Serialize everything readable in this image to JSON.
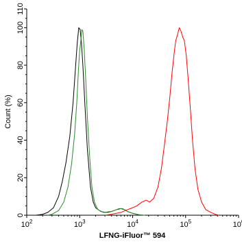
{
  "chart_data": {
    "type": "line",
    "title": "",
    "xlabel": "LFNG-iFluor™ 594",
    "ylabel": "Count (%)",
    "xscale": "log",
    "xlim": [
      100,
      1000000
    ],
    "ylim": [
      0,
      110
    ],
    "grid": false,
    "legend": "none",
    "x_ticks": [
      {
        "value": 100,
        "base": "10",
        "exp": "2"
      },
      {
        "value": 1000,
        "base": "10",
        "exp": "3"
      },
      {
        "value": 10000,
        "base": "10",
        "exp": "4"
      },
      {
        "value": 100000,
        "base": "10",
        "exp": "5"
      },
      {
        "value": 1000000,
        "base": "10",
        "exp": "6"
      }
    ],
    "y_ticks": [
      {
        "value": 0,
        "label": "0"
      },
      {
        "value": 20,
        "label": "20"
      },
      {
        "value": 40,
        "label": "40"
      },
      {
        "value": 60,
        "label": "60"
      },
      {
        "value": 80,
        "label": "80"
      },
      {
        "value": 100,
        "label": "100"
      },
      {
        "value": 110,
        "label": "110"
      }
    ],
    "series": [
      {
        "color": "#000000",
        "points": [
          [
            150,
            0
          ],
          [
            200,
            0.5
          ],
          [
            250,
            1.5
          ],
          [
            320,
            4
          ],
          [
            400,
            10
          ],
          [
            470,
            18
          ],
          [
            550,
            28
          ],
          [
            650,
            42
          ],
          [
            750,
            60
          ],
          [
            830,
            78
          ],
          [
            900,
            92
          ],
          [
            960,
            100
          ],
          [
            1020,
            99
          ],
          [
            1080,
            92
          ],
          [
            1150,
            80
          ],
          [
            1250,
            60
          ],
          [
            1400,
            35
          ],
          [
            1600,
            15
          ],
          [
            1800,
            7
          ],
          [
            2000,
            4
          ],
          [
            2500,
            2
          ],
          [
            3000,
            1.5
          ],
          [
            4000,
            2
          ],
          [
            5000,
            3
          ],
          [
            6000,
            3.5
          ],
          [
            7000,
            3
          ],
          [
            8000,
            2
          ],
          [
            10000,
            1
          ],
          [
            13000,
            0.3
          ],
          [
            16000,
            0
          ]
        ]
      },
      {
        "color": "#2a8a2a",
        "points": [
          [
            250,
            0
          ],
          [
            300,
            0.5
          ],
          [
            400,
            2.5
          ],
          [
            500,
            7
          ],
          [
            600,
            15
          ],
          [
            700,
            27
          ],
          [
            800,
            43
          ],
          [
            880,
            60
          ],
          [
            950,
            78
          ],
          [
            1000,
            88
          ],
          [
            1050,
            93
          ],
          [
            1100,
            99
          ],
          [
            1150,
            98
          ],
          [
            1220,
            88
          ],
          [
            1300,
            72
          ],
          [
            1400,
            52
          ],
          [
            1550,
            30
          ],
          [
            1700,
            15
          ],
          [
            1900,
            7
          ],
          [
            2200,
            3
          ],
          [
            2800,
            1.5
          ],
          [
            3500,
            1.5
          ],
          [
            4500,
            2.5
          ],
          [
            5500,
            3.5
          ],
          [
            6500,
            3.5
          ],
          [
            8000,
            2
          ],
          [
            10000,
            1
          ],
          [
            13000,
            0.3
          ],
          [
            17000,
            0
          ]
        ]
      },
      {
        "color": "#ff0000",
        "points": [
          [
            3000,
            0
          ],
          [
            4000,
            0.5
          ],
          [
            6000,
            1.5
          ],
          [
            8000,
            3
          ],
          [
            10000,
            4
          ],
          [
            12000,
            5
          ],
          [
            15000,
            7
          ],
          [
            18000,
            8
          ],
          [
            21000,
            7
          ],
          [
            25000,
            9
          ],
          [
            30000,
            15
          ],
          [
            35000,
            25
          ],
          [
            40000,
            38
          ],
          [
            45000,
            50
          ],
          [
            50000,
            62
          ],
          [
            55000,
            75
          ],
          [
            60000,
            85
          ],
          [
            65000,
            93
          ],
          [
            70000,
            96
          ],
          [
            76000,
            100
          ],
          [
            82000,
            98
          ],
          [
            88000,
            95
          ],
          [
            95000,
            93
          ],
          [
            103000,
            85
          ],
          [
            112000,
            72
          ],
          [
            122000,
            58
          ],
          [
            135000,
            40
          ],
          [
            150000,
            25
          ],
          [
            170000,
            14
          ],
          [
            200000,
            7
          ],
          [
            240000,
            3
          ],
          [
            300000,
            1.5
          ],
          [
            360000,
            0.5
          ],
          [
            420000,
            0
          ]
        ]
      }
    ]
  }
}
